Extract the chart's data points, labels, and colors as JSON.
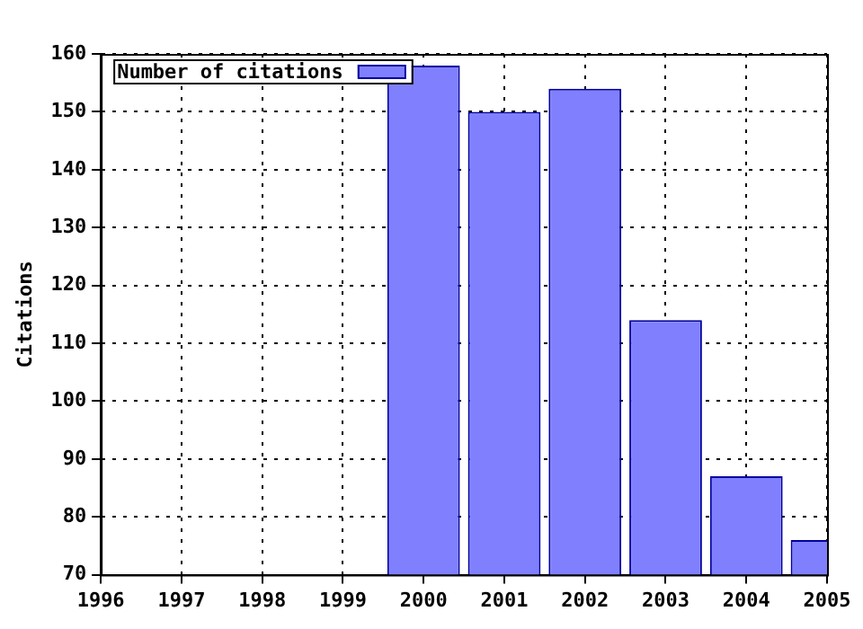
{
  "chart_data": {
    "type": "bar",
    "ylabel": "Citations",
    "x": [
      2000,
      2001,
      2002,
      2003,
      2004,
      2005
    ],
    "series": [
      {
        "name": "Number of citations",
        "color": "#8080ff",
        "values": [
          158,
          150,
          154,
          114,
          87,
          76
        ]
      }
    ],
    "xlim": [
      1996,
      2005
    ],
    "xticks": [
      1996,
      1997,
      1998,
      1999,
      2000,
      2001,
      2002,
      2003,
      2004,
      2005
    ],
    "ylim": [
      70,
      160
    ],
    "yticks": [
      70,
      80,
      90,
      100,
      110,
      120,
      130,
      140,
      150,
      160
    ],
    "grid": true,
    "legend": "top left"
  }
}
